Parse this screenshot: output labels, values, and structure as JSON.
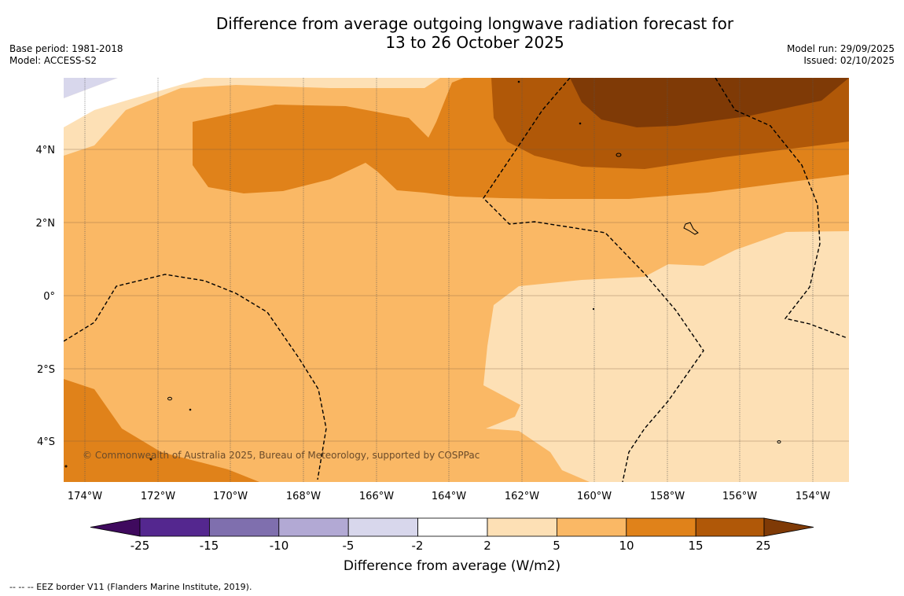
{
  "title": {
    "line1": "Difference from average outgoing longwave radiation forecast for",
    "line2": "13 to 26 October 2025"
  },
  "meta": {
    "base_period": "Base period: 1981-2018",
    "model": "Model: ACCESS-S2",
    "model_run": "Model run: 29/09/2025",
    "issued": "Issued: 02/10/2025"
  },
  "credit": "© Commonwealth of Australia 2025, Bureau of Meteorology, supported by COSPPac",
  "axes": {
    "lat_labels": [
      "4°N",
      "2°N",
      "0°",
      "2°S",
      "4°S"
    ],
    "lon_labels": [
      "174°W",
      "172°W",
      "170°W",
      "168°W",
      "166°W",
      "164°W",
      "162°W",
      "160°W",
      "158°W",
      "156°W",
      "154°W"
    ]
  },
  "colorbar": {
    "title": "Difference from average (W/m2)",
    "ticks": [
      "-25",
      "-15",
      "-10",
      "-5",
      "-2",
      "2",
      "5",
      "10",
      "15",
      "25"
    ],
    "colors": [
      "#3f0a5e",
      "#54278f",
      "#7f6fae",
      "#b2a9d4",
      "#d8d7ec",
      "#ffffff",
      "#fde0b5",
      "#fab865",
      "#e0821a",
      "#b05808",
      "#7f3a06"
    ]
  },
  "legend_note": "--  --  -- EEZ border V11 (Flanders Marine Institute, 2019)."
}
